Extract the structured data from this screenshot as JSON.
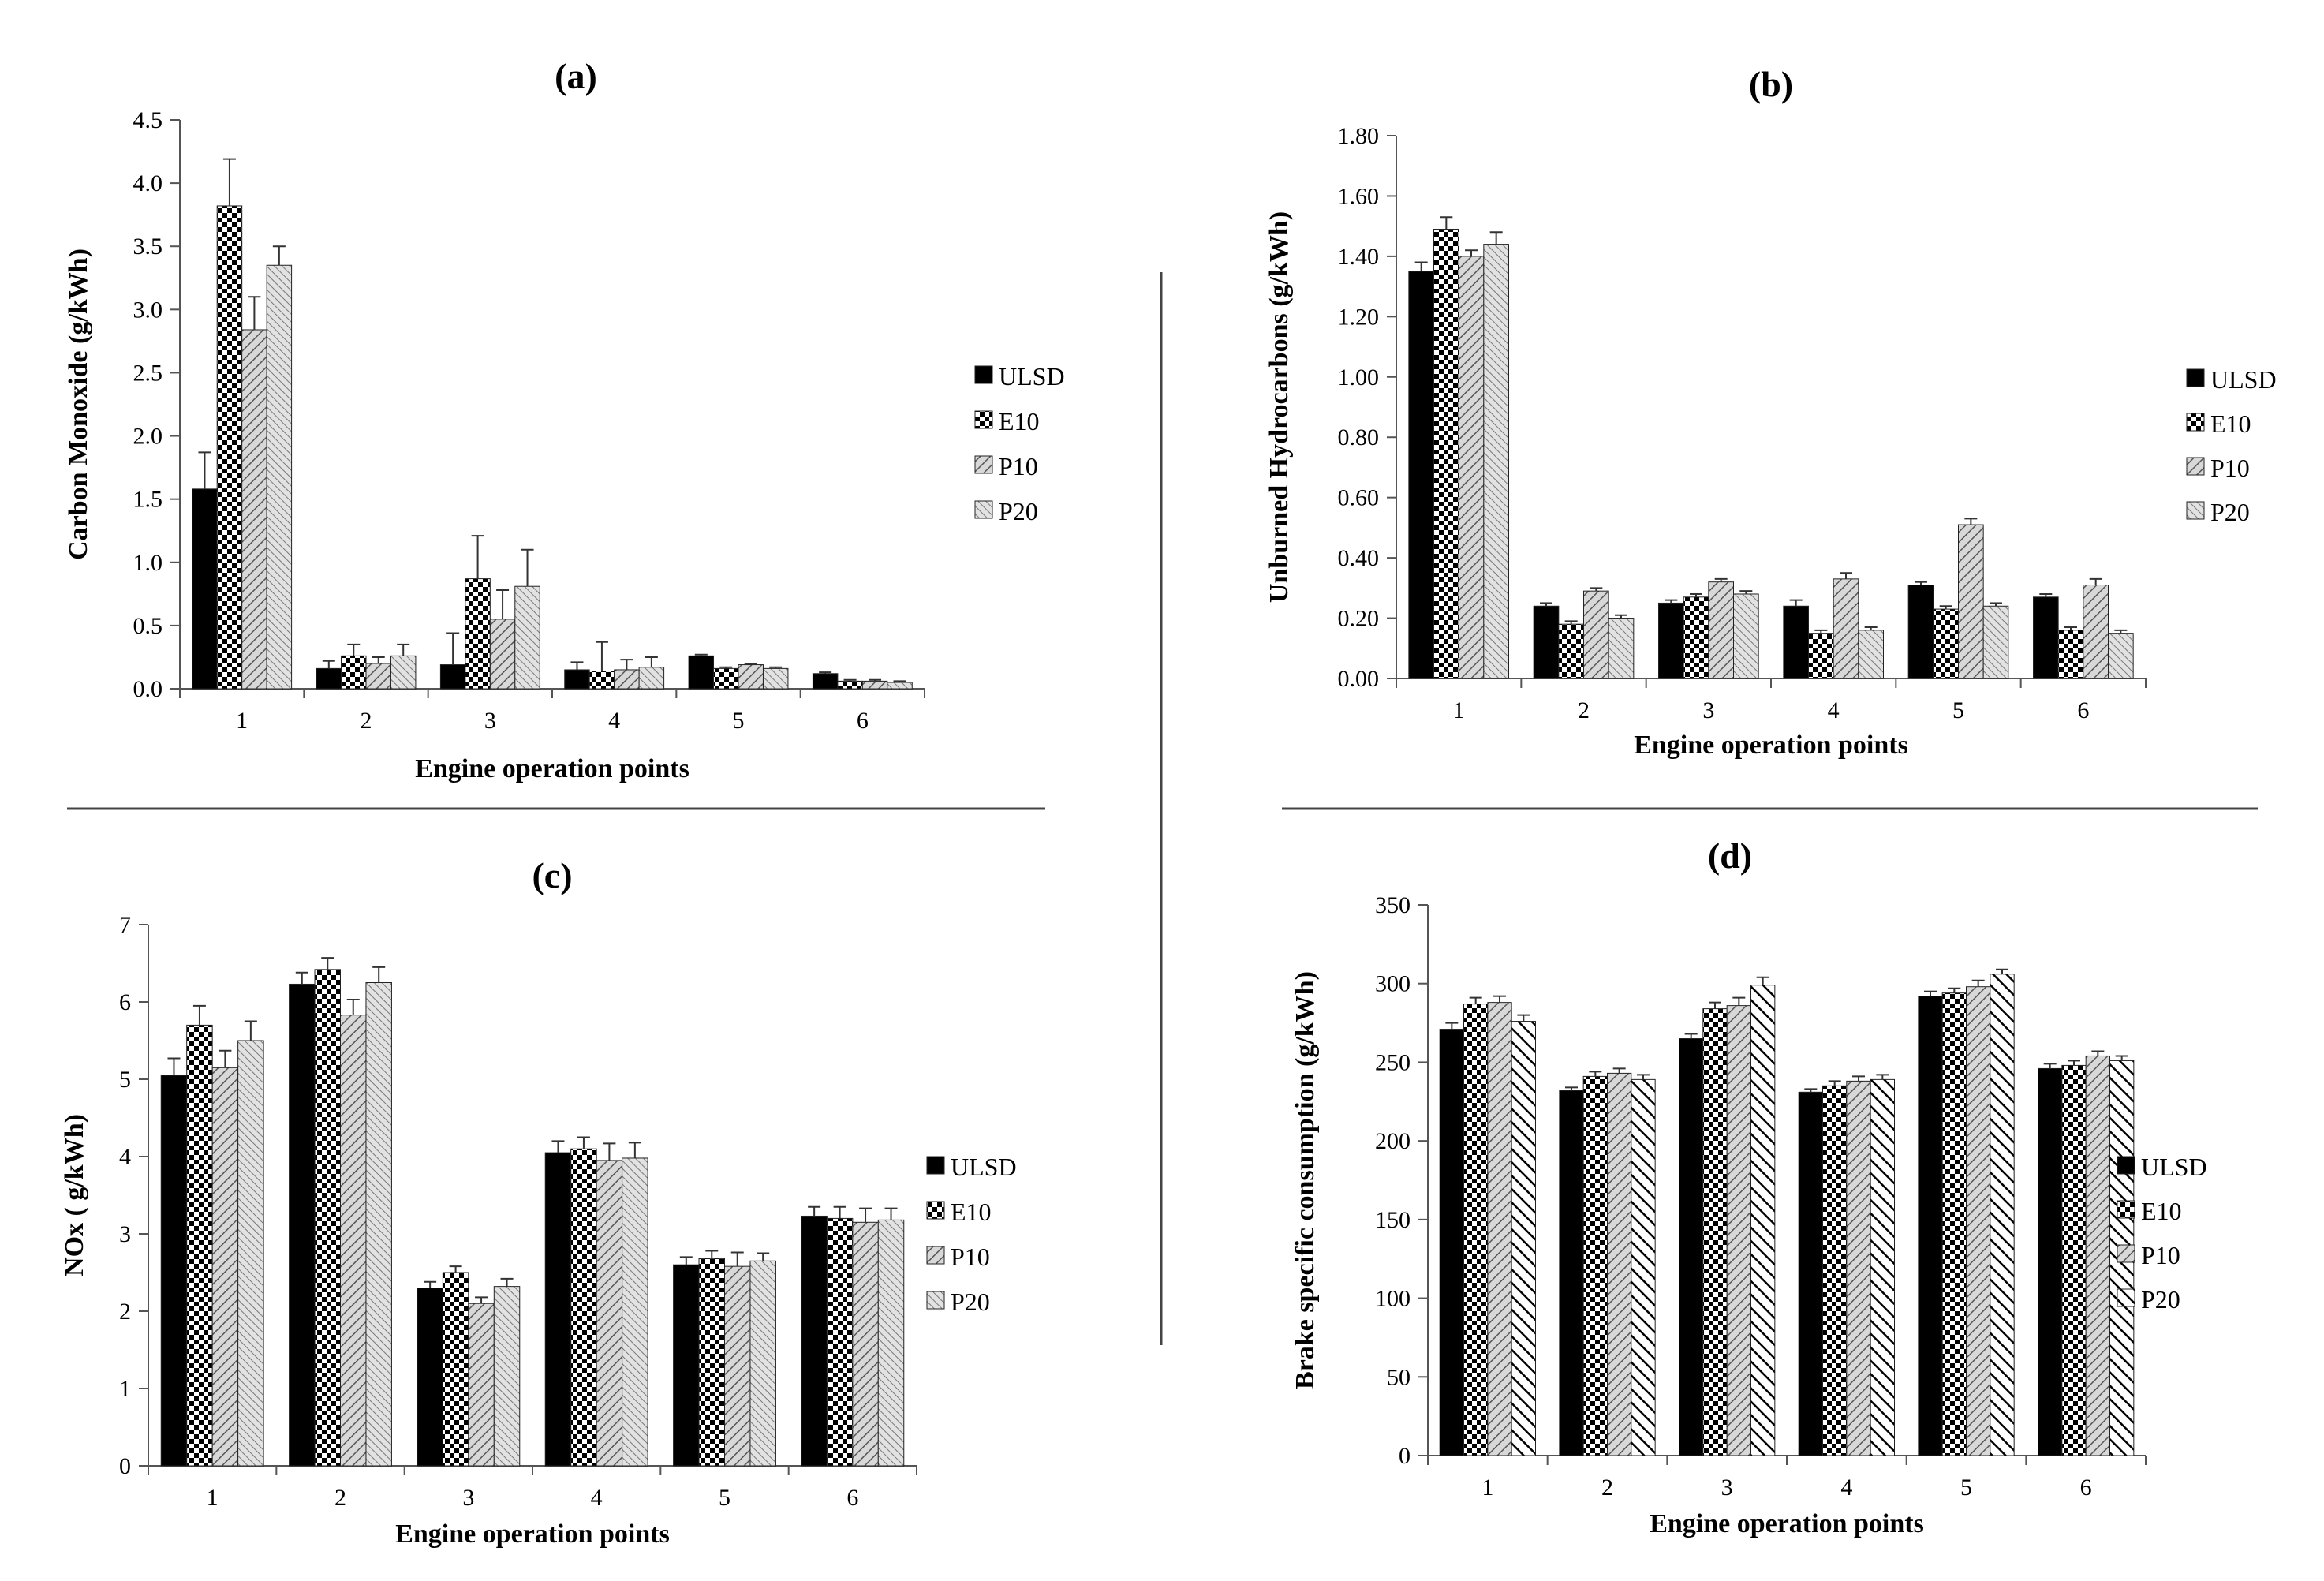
{
  "chart_data": [
    {
      "id": "a",
      "type": "bar",
      "title": "(a)",
      "xlabel": "Engine operation points",
      "ylabel": "Carbon Monoxide (g/kWh)",
      "categories": [
        "1",
        "2",
        "3",
        "4",
        "5",
        "6"
      ],
      "ylim": [
        0,
        4.5
      ],
      "yticks": [
        "0.0",
        "0.5",
        "1.0",
        "1.5",
        "2.0",
        "2.5",
        "3.0",
        "3.5",
        "4.0",
        "4.5"
      ],
      "ytick_values": [
        0,
        0.5,
        1,
        1.5,
        2,
        2.5,
        3,
        3.5,
        4,
        4.5
      ],
      "series": [
        {
          "name": "ULSD",
          "pattern": "solid",
          "values": [
            1.58,
            0.16,
            0.19,
            0.15,
            0.26,
            0.12
          ],
          "errors": [
            0.29,
            0.06,
            0.25,
            0.06,
            0.01,
            0.01
          ]
        },
        {
          "name": "E10",
          "pattern": "checker",
          "values": [
            3.82,
            0.26,
            0.87,
            0.14,
            0.16,
            0.06
          ],
          "errors": [
            0.37,
            0.09,
            0.34,
            0.23,
            0.01,
            0.01
          ]
        },
        {
          "name": "P10",
          "pattern": "diag",
          "values": [
            2.84,
            0.2,
            0.55,
            0.15,
            0.19,
            0.06
          ],
          "errors": [
            0.26,
            0.05,
            0.23,
            0.08,
            0.01,
            0.01
          ]
        },
        {
          "name": "P20",
          "pattern": "diag-fine",
          "values": [
            3.35,
            0.26,
            0.81,
            0.17,
            0.16,
            0.05
          ],
          "errors": [
            0.15,
            0.09,
            0.29,
            0.08,
            0.01,
            0.01
          ]
        }
      ]
    },
    {
      "id": "b",
      "type": "bar",
      "title": "(b)",
      "xlabel": "Engine operation points",
      "ylabel": "Unburned Hydrocarbons (g/kWh)",
      "categories": [
        "1",
        "2",
        "3",
        "4",
        "5",
        "6"
      ],
      "ylim": [
        0,
        1.8
      ],
      "yticks": [
        "0.00",
        "0.20",
        "0.40",
        "0.60",
        "0.80",
        "1.00",
        "1.20",
        "1.40",
        "1.60",
        "1.80"
      ],
      "ytick_values": [
        0,
        0.2,
        0.4,
        0.6,
        0.8,
        1.0,
        1.2,
        1.4,
        1.6,
        1.8
      ],
      "series": [
        {
          "name": "ULSD",
          "pattern": "solid",
          "values": [
            1.35,
            0.24,
            0.25,
            0.24,
            0.31,
            0.27
          ],
          "errors": [
            0.03,
            0.01,
            0.01,
            0.02,
            0.01,
            0.01
          ]
        },
        {
          "name": "E10",
          "pattern": "checker",
          "values": [
            1.49,
            0.18,
            0.27,
            0.15,
            0.23,
            0.16
          ],
          "errors": [
            0.04,
            0.01,
            0.01,
            0.01,
            0.01,
            0.01
          ]
        },
        {
          "name": "P10",
          "pattern": "diag",
          "values": [
            1.4,
            0.29,
            0.32,
            0.33,
            0.51,
            0.31
          ],
          "errors": [
            0.02,
            0.01,
            0.01,
            0.02,
            0.02,
            0.02
          ]
        },
        {
          "name": "P20",
          "pattern": "diag-fine",
          "values": [
            1.44,
            0.2,
            0.28,
            0.16,
            0.24,
            0.15
          ],
          "errors": [
            0.04,
            0.01,
            0.01,
            0.01,
            0.01,
            0.01
          ]
        }
      ]
    },
    {
      "id": "c",
      "type": "bar",
      "title": "(c)",
      "xlabel": "Engine operation points",
      "ylabel": "NOx ( g/kWh)",
      "categories": [
        "1",
        "2",
        "3",
        "4",
        "5",
        "6"
      ],
      "ylim": [
        0,
        7
      ],
      "yticks": [
        "0",
        "1",
        "2",
        "3",
        "4",
        "5",
        "6",
        "7"
      ],
      "ytick_values": [
        0,
        1,
        2,
        3,
        4,
        5,
        6,
        7
      ],
      "series": [
        {
          "name": "ULSD",
          "pattern": "solid",
          "values": [
            5.05,
            6.23,
            2.3,
            4.05,
            2.6,
            3.23
          ],
          "errors": [
            0.22,
            0.15,
            0.08,
            0.15,
            0.1,
            0.12
          ]
        },
        {
          "name": "E10",
          "pattern": "checker",
          "values": [
            5.7,
            6.42,
            2.5,
            4.1,
            2.68,
            3.2
          ],
          "errors": [
            0.25,
            0.15,
            0.08,
            0.15,
            0.1,
            0.15
          ]
        },
        {
          "name": "P10",
          "pattern": "diag",
          "values": [
            5.15,
            5.83,
            2.1,
            3.95,
            2.58,
            3.15
          ],
          "errors": [
            0.22,
            0.2,
            0.08,
            0.22,
            0.18,
            0.18
          ]
        },
        {
          "name": "P20",
          "pattern": "diag-fine",
          "values": [
            5.5,
            6.25,
            2.32,
            3.98,
            2.65,
            3.18
          ],
          "errors": [
            0.25,
            0.2,
            0.1,
            0.2,
            0.1,
            0.15
          ]
        }
      ]
    },
    {
      "id": "d",
      "type": "bar",
      "title": "(d)",
      "xlabel": "Engine operation points",
      "ylabel": "Brake specific consumption (g/kWh)",
      "categories": [
        "1",
        "2",
        "3",
        "4",
        "5",
        "6"
      ],
      "ylim": [
        0,
        350
      ],
      "yticks": [
        "0",
        "50",
        "100",
        "150",
        "200",
        "250",
        "300",
        "350"
      ],
      "ytick_values": [
        0,
        50,
        100,
        150,
        200,
        250,
        300,
        350
      ],
      "series": [
        {
          "name": "ULSD",
          "pattern": "solid",
          "values": [
            271,
            232,
            265,
            231,
            292,
            246
          ],
          "errors": [
            4,
            2,
            3,
            2,
            3,
            3
          ]
        },
        {
          "name": "E10",
          "pattern": "checker",
          "values": [
            287,
            241,
            284,
            235,
            294,
            248
          ],
          "errors": [
            4,
            3,
            4,
            3,
            3,
            3
          ]
        },
        {
          "name": "P10",
          "pattern": "diag",
          "values": [
            288,
            243,
            286,
            238,
            298,
            254
          ],
          "errors": [
            4,
            3,
            5,
            3,
            4,
            3
          ]
        },
        {
          "name": "P20",
          "pattern": "diag-rev",
          "values": [
            276,
            239,
            299,
            239,
            306,
            251
          ],
          "errors": [
            4,
            3,
            5,
            3,
            3,
            3
          ]
        }
      ]
    }
  ]
}
